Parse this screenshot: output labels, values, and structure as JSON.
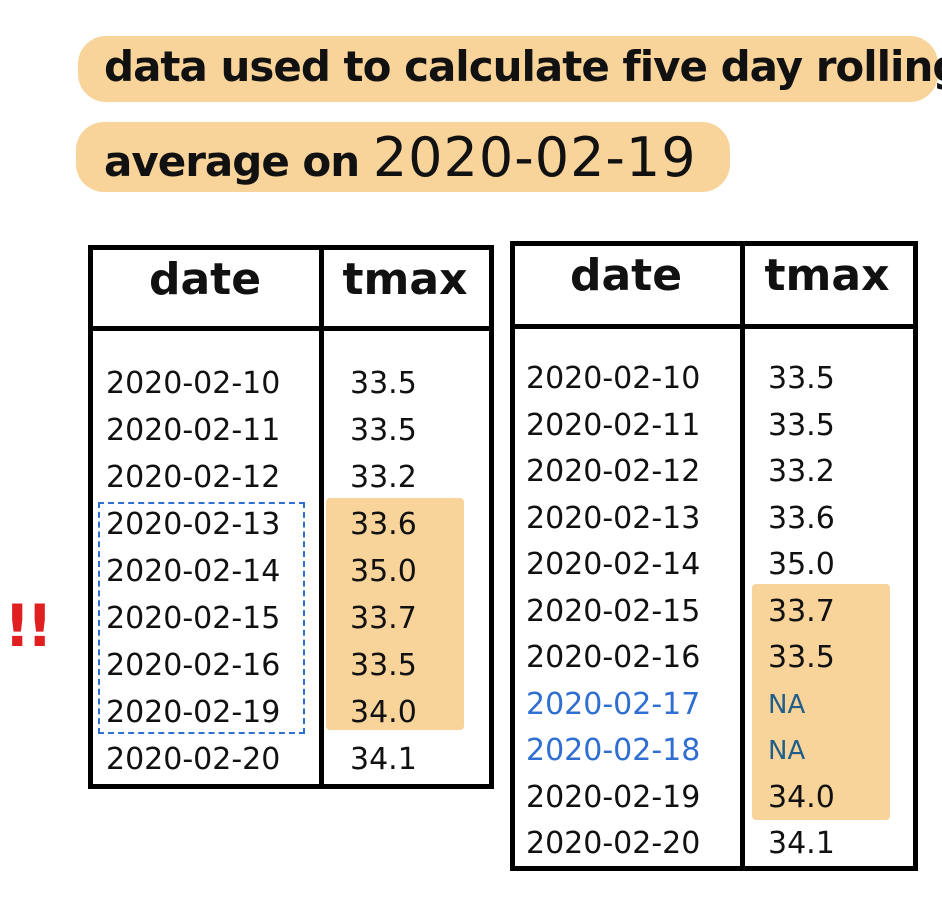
{
  "title": {
    "line1": "data used to calculate five day rolling",
    "line2_text": "average on",
    "line2_date": "2020-02-19"
  },
  "colors": {
    "highlight": "#f8d39a",
    "missing_text": "#2f6fd1",
    "na_text": "#1f5f8a",
    "alert": "#e02020",
    "dashed_box": "#2f6fd1"
  },
  "alert_mark": "!!",
  "left_table": {
    "headers": [
      "date",
      "tmax"
    ],
    "rows": [
      {
        "date": "2020-02-10",
        "tmax": "33.5"
      },
      {
        "date": "2020-02-11",
        "tmax": "33.5"
      },
      {
        "date": "2020-02-12",
        "tmax": "33.2"
      },
      {
        "date": "2020-02-13",
        "tmax": "33.6"
      },
      {
        "date": "2020-02-14",
        "tmax": "35.0"
      },
      {
        "date": "2020-02-15",
        "tmax": "33.7"
      },
      {
        "date": "2020-02-16",
        "tmax": "33.5"
      },
      {
        "date": "2020-02-19",
        "tmax": "34.0"
      },
      {
        "date": "2020-02-20",
        "tmax": "34.1"
      }
    ]
  },
  "right_table": {
    "headers": [
      "date",
      "tmax"
    ],
    "rows": [
      {
        "date": "2020-02-10",
        "tmax": "33.5"
      },
      {
        "date": "2020-02-11",
        "tmax": "33.5"
      },
      {
        "date": "2020-02-12",
        "tmax": "33.2"
      },
      {
        "date": "2020-02-13",
        "tmax": "33.6"
      },
      {
        "date": "2020-02-14",
        "tmax": "35.0"
      },
      {
        "date": "2020-02-15",
        "tmax": "33.7"
      },
      {
        "date": "2020-02-16",
        "tmax": "33.5"
      },
      {
        "date": "2020-02-17",
        "tmax": "NA"
      },
      {
        "date": "2020-02-18",
        "tmax": "NA"
      },
      {
        "date": "2020-02-19",
        "tmax": "34.0"
      },
      {
        "date": "2020-02-20",
        "tmax": "34.1"
      }
    ]
  }
}
